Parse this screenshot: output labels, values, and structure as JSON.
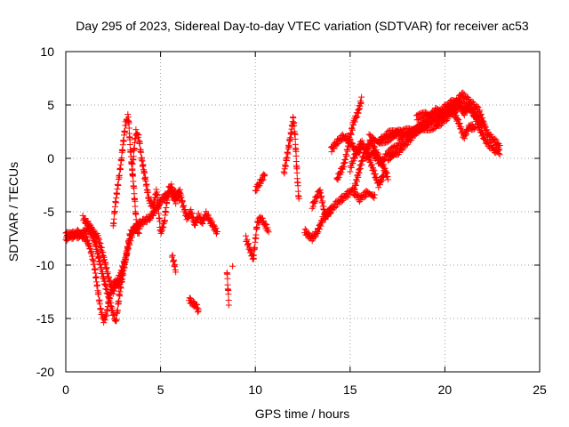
{
  "chart_data": {
    "type": "scatter",
    "title": "Day 295 of 2023, Sidereal Day-to-day VTEC variation (SDTVAR) for receiver ac53",
    "xlabel": "GPS time / hours",
    "ylabel": "SDTVAR / TECUs",
    "xlim": [
      0,
      25
    ],
    "ylim": [
      -20,
      10
    ],
    "x_ticks": [
      "0",
      "5",
      "10",
      "15",
      "20",
      "25"
    ],
    "y_ticks": [
      "-20",
      "-15",
      "-10",
      "-5",
      "0",
      "5",
      "10"
    ],
    "grid": true,
    "marker": "+",
    "color": "#ff0000",
    "series": [
      {
        "name": "SDTVAR",
        "segments": [
          [
            [
              0.0,
              -7.0
            ],
            [
              0.3,
              -7.4
            ],
            [
              0.6,
              -6.9
            ],
            [
              0.9,
              -7.3
            ],
            [
              1.1,
              -7.6
            ],
            [
              1.3,
              -8.5
            ],
            [
              1.5,
              -10.0
            ],
            [
              1.7,
              -12.5
            ],
            [
              1.85,
              -14.3
            ],
            [
              2.0,
              -15.2
            ],
            [
              2.15,
              -14.6
            ],
            [
              2.3,
              -13.0
            ],
            [
              2.45,
              -12.2
            ],
            [
              2.6,
              -11.5
            ],
            [
              2.8,
              -12.0
            ],
            [
              3.0,
              -10.6
            ],
            [
              3.2,
              -9.0
            ],
            [
              3.4,
              -7.6
            ],
            [
              3.6,
              -6.6
            ],
            [
              3.8,
              -6.2
            ],
            [
              4.0,
              -6.0
            ],
            [
              4.2,
              -5.8
            ],
            [
              4.4,
              -5.6
            ],
            [
              4.6,
              -5.2
            ],
            [
              4.8,
              -4.6
            ],
            [
              5.0,
              -4.0
            ],
            [
              5.2,
              -3.6
            ],
            [
              5.4,
              -3.4
            ],
            [
              5.6,
              -3.0
            ],
            [
              5.8,
              -3.3
            ],
            [
              6.0,
              -3.8
            ]
          ],
          [
            [
              0.0,
              -7.6
            ],
            [
              0.3,
              -7.0
            ],
            [
              0.6,
              -7.3
            ],
            [
              0.9,
              -7.0
            ],
            [
              1.2,
              -6.6
            ],
            [
              1.5,
              -7.6
            ],
            [
              1.7,
              -9.0
            ],
            [
              1.9,
              -10.6
            ],
            [
              2.1,
              -12.0
            ],
            [
              2.3,
              -13.2
            ],
            [
              2.5,
              -14.6
            ],
            [
              2.65,
              -15.3
            ],
            [
              2.8,
              -13.2
            ],
            [
              3.0,
              -11.0
            ],
            [
              3.2,
              -9.0
            ],
            [
              3.4,
              -7.0
            ],
            [
              3.6,
              -6.6
            ],
            [
              3.9,
              -6.8
            ]
          ],
          [
            [
              0.9,
              -5.6
            ],
            [
              1.2,
              -6.2
            ],
            [
              1.5,
              -7.0
            ],
            [
              1.7,
              -7.4
            ],
            [
              1.9,
              -8.6
            ],
            [
              2.1,
              -10.0
            ],
            [
              2.3,
              -11.5
            ],
            [
              2.5,
              -12.5
            ],
            [
              2.7,
              -11.6
            ],
            [
              2.9,
              -10.8
            ],
            [
              3.1,
              -9.6
            ]
          ],
          [
            [
              2.5,
              -6.5
            ],
            [
              2.6,
              -4.5
            ],
            [
              2.75,
              -2.5
            ],
            [
              2.9,
              -0.6
            ],
            [
              3.0,
              1.0
            ],
            [
              3.15,
              3.2
            ],
            [
              3.3,
              4.0
            ],
            [
              3.4,
              1.0
            ],
            [
              3.5,
              -1.0
            ],
            [
              3.6,
              -3.0
            ],
            [
              3.7,
              -5.5
            ],
            [
              3.8,
              -7.0
            ]
          ],
          [
            [
              3.5,
              -1.0
            ],
            [
              3.7,
              2.5
            ],
            [
              3.85,
              2.0
            ],
            [
              4.0,
              0.0
            ],
            [
              4.2,
              -2.0
            ],
            [
              4.4,
              -4.0
            ],
            [
              4.6,
              -4.5
            ],
            [
              4.8,
              -3.0
            ],
            [
              5.0,
              -7.0
            ],
            [
              5.2,
              -6.0
            ],
            [
              5.4,
              -3.0
            ],
            [
              5.6,
              -2.5
            ]
          ],
          [
            [
              5.6,
              -3.4
            ],
            [
              5.8,
              -4.0
            ],
            [
              6.0,
              -3.0
            ],
            [
              6.2,
              -4.5
            ],
            [
              6.4,
              -5.6
            ],
            [
              6.6,
              -5.0
            ],
            [
              6.8,
              -6.2
            ],
            [
              7.0,
              -5.4
            ],
            [
              7.2,
              -6.0
            ],
            [
              7.4,
              -5.2
            ],
            [
              7.6,
              -5.8
            ],
            [
              7.8,
              -6.4
            ],
            [
              8.0,
              -7.0
            ]
          ],
          [
            [
              5.6,
              -9.0
            ],
            [
              5.8,
              -10.5
            ]
          ],
          [
            [
              6.5,
              -13.2
            ],
            [
              6.7,
              -13.6
            ],
            [
              6.9,
              -13.8
            ],
            [
              7.0,
              -14.4
            ]
          ],
          [
            [
              8.5,
              -10.5
            ],
            [
              8.55,
              -12.0
            ],
            [
              8.6,
              -13.5
            ]
          ],
          [
            [
              8.8,
              -10.0
            ]
          ],
          [
            [
              9.5,
              -7.5
            ],
            [
              9.7,
              -8.5
            ],
            [
              9.9,
              -9.4
            ],
            [
              10.1,
              -6.0
            ],
            [
              10.3,
              -5.6
            ],
            [
              10.7,
              -6.8
            ]
          ],
          [
            [
              10.0,
              -3.0
            ],
            [
              10.5,
              -1.5
            ]
          ],
          [
            [
              11.5,
              -1.5
            ],
            [
              11.7,
              0.5
            ],
            [
              11.9,
              2.5
            ],
            [
              12.0,
              3.8
            ],
            [
              12.1,
              2.0
            ],
            [
              12.2,
              -1.5
            ],
            [
              12.3,
              -4.0
            ]
          ],
          [
            [
              12.6,
              -6.8
            ],
            [
              12.8,
              -7.2
            ],
            [
              13.0,
              -7.5
            ],
            [
              13.3,
              -6.8
            ],
            [
              13.6,
              -5.5
            ],
            [
              13.9,
              -5.0
            ],
            [
              14.3,
              -4.2
            ],
            [
              14.7,
              -3.6
            ],
            [
              15.1,
              -3.0
            ],
            [
              15.5,
              -3.8
            ],
            [
              15.9,
              -3.2
            ],
            [
              16.3,
              -3.6
            ]
          ],
          [
            [
              13.0,
              -4.5
            ],
            [
              13.4,
              -3.0
            ],
            [
              13.7,
              -5.5
            ],
            [
              14.0,
              -4.8
            ]
          ],
          [
            [
              14.0,
              0.8
            ],
            [
              14.3,
              1.5
            ],
            [
              14.6,
              2.0
            ],
            [
              14.9,
              1.8
            ],
            [
              15.2,
              1.0
            ],
            [
              15.4,
              0.5
            ],
            [
              15.6,
              1.0
            ]
          ],
          [
            [
              14.3,
              -2.0
            ],
            [
              14.7,
              -0.5
            ],
            [
              15.0,
              2.0
            ],
            [
              15.2,
              3.5
            ],
            [
              15.4,
              4.2
            ],
            [
              15.6,
              5.5
            ]
          ],
          [
            [
              15.0,
              -1.0
            ],
            [
              15.3,
              0.5
            ],
            [
              15.6,
              1.5
            ],
            [
              15.9,
              0.5
            ],
            [
              16.2,
              -1.0
            ],
            [
              16.5,
              -2.5
            ],
            [
              16.8,
              -1.5
            ]
          ],
          [
            [
              15.2,
              -3.0
            ],
            [
              15.5,
              -1.0
            ],
            [
              15.8,
              0.8
            ],
            [
              16.1,
              1.5
            ],
            [
              16.4,
              0.5
            ],
            [
              16.7,
              -0.5
            ],
            [
              17.0,
              -1.8
            ]
          ],
          [
            [
              15.8,
              0.2
            ],
            [
              16.2,
              0.5
            ],
            [
              16.6,
              -0.5
            ],
            [
              17.0,
              0.5
            ],
            [
              17.4,
              1.0
            ],
            [
              17.8,
              1.8
            ]
          ],
          [
            [
              16.0,
              2.0
            ],
            [
              16.5,
              1.5
            ],
            [
              17.0,
              1.8
            ],
            [
              17.5,
              2.2
            ],
            [
              18.0,
              2.6
            ],
            [
              18.5,
              2.8
            ],
            [
              19.0,
              3.2
            ],
            [
              19.5,
              3.6
            ],
            [
              20.0,
              4.2
            ],
            [
              20.5,
              5.0
            ],
            [
              20.9,
              6.0
            ],
            [
              21.2,
              5.5
            ],
            [
              21.5,
              5.0
            ],
            [
              21.8,
              4.5
            ],
            [
              22.0,
              3.5
            ],
            [
              22.2,
              2.5
            ],
            [
              22.4,
              2.0
            ],
            [
              22.7,
              1.5
            ],
            [
              22.9,
              1.0
            ]
          ],
          [
            [
              16.5,
              1.5
            ],
            [
              17.0,
              2.3
            ],
            [
              17.5,
              2.6
            ],
            [
              18.0,
              2.0
            ],
            [
              18.5,
              2.6
            ],
            [
              19.0,
              3.5
            ],
            [
              19.5,
              4.5
            ],
            [
              20.0,
              4.0
            ],
            [
              20.5,
              4.4
            ],
            [
              20.8,
              5.0
            ],
            [
              21.0,
              4.2
            ],
            [
              21.3,
              5.0
            ],
            [
              21.6,
              3.8
            ],
            [
              21.9,
              2.5
            ],
            [
              22.2,
              1.5
            ],
            [
              22.6,
              0.8
            ],
            [
              22.9,
              0.6
            ]
          ],
          [
            [
              17.0,
              0.0
            ],
            [
              17.5,
              0.5
            ],
            [
              18.0,
              1.5
            ],
            [
              18.5,
              2.5
            ],
            [
              19.0,
              2.8
            ],
            [
              19.5,
              3.0
            ],
            [
              20.0,
              3.6
            ],
            [
              20.4,
              4.4
            ],
            [
              20.7,
              3.5
            ],
            [
              21.0,
              2.0
            ],
            [
              21.3,
              3.0
            ],
            [
              21.6,
              2.8
            ]
          ],
          [
            [
              18.5,
              3.8
            ],
            [
              19.0,
              4.2
            ],
            [
              19.5,
              3.8
            ],
            [
              20.0,
              4.8
            ],
            [
              20.5,
              5.4
            ],
            [
              20.9,
              5.0
            ],
            [
              21.3,
              4.6
            ],
            [
              21.7,
              4.0
            ],
            [
              22.0,
              3.0
            ]
          ]
        ]
      }
    ]
  }
}
